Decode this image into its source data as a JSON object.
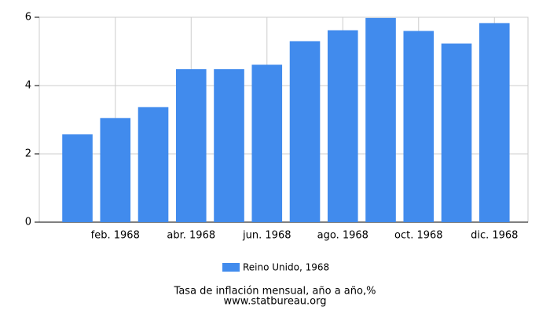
{
  "chart_data": {
    "type": "bar",
    "categories": [
      null,
      "feb. 1968",
      null,
      "abr. 1968",
      null,
      "jun. 1968",
      null,
      "ago. 1968",
      null,
      "oct. 1968",
      null,
      "dic. 1968"
    ],
    "series": [
      {
        "name": "Reino Unido, 1968",
        "color": "#418bed",
        "values": [
          2.57,
          3.05,
          3.37,
          4.48,
          4.48,
          4.61,
          5.3,
          5.62,
          5.98,
          5.6,
          5.23,
          5.83
        ]
      }
    ],
    "ylim": [
      0,
      6
    ],
    "yticks": [
      0,
      2,
      4,
      6
    ],
    "grid": true,
    "title": "Tasa de inflación mensual, año a año,%",
    "source": "www.statbureau.org"
  }
}
